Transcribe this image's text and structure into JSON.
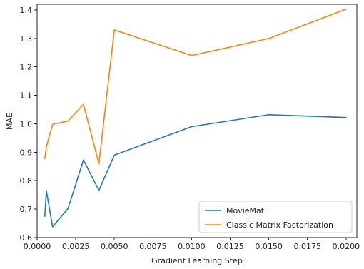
{
  "chart_data": {
    "type": "line",
    "title": "",
    "xlabel": "Gradient Learning Step",
    "ylabel": "MAE",
    "xlim": [
      0.0,
      0.0207
    ],
    "ylim": [
      0.6,
      1.42
    ],
    "xticks": [
      0.0,
      0.0025,
      0.005,
      0.0075,
      0.01,
      0.0125,
      0.015,
      0.0175,
      0.02
    ],
    "xtick_labels": [
      "0.0000",
      "0.0025",
      "0.0050",
      "0.0075",
      "0.0100",
      "0.0125",
      "0.0150",
      "0.0175",
      "0.0200"
    ],
    "yticks": [
      0.6,
      0.7,
      0.8,
      0.9,
      1.0,
      1.1,
      1.2,
      1.3,
      1.4
    ],
    "ytick_labels": [
      "0.6",
      "0.7",
      "0.8",
      "0.9",
      "1.0",
      "1.1",
      "1.2",
      "1.3",
      "1.4"
    ],
    "grid": false,
    "legend_position": "lower-right",
    "series": [
      {
        "name": "MovieMat",
        "color": "#1f77b4",
        "x": [
          0.0005,
          0.0006,
          0.001,
          0.002,
          0.003,
          0.004,
          0.005,
          0.01,
          0.015,
          0.02
        ],
        "y": [
          0.675,
          0.765,
          0.638,
          0.702,
          0.873,
          0.766,
          0.89,
          0.99,
          1.032,
          1.022
        ]
      },
      {
        "name": "Classic Matrix Factorization",
        "color": "#ff7f0e",
        "x": [
          0.0005,
          0.0006,
          0.001,
          0.002,
          0.003,
          0.004,
          0.005,
          0.01,
          0.015,
          0.02
        ],
        "y": [
          0.878,
          0.92,
          0.998,
          1.01,
          1.068,
          0.86,
          1.33,
          1.24,
          1.3,
          1.403
        ]
      }
    ]
  }
}
